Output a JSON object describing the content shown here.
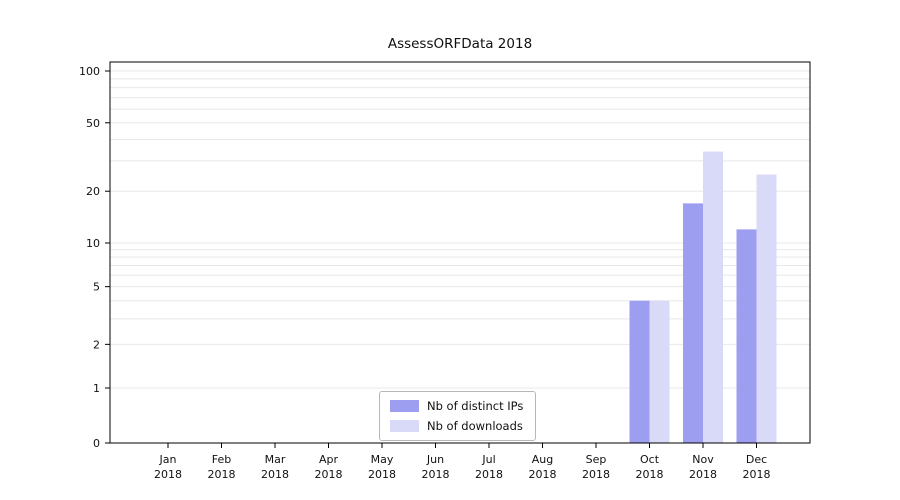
{
  "chart_data": {
    "type": "bar",
    "title": "AssessORFData 2018",
    "categories": [
      {
        "month": "Jan",
        "year": "2018"
      },
      {
        "month": "Feb",
        "year": "2018"
      },
      {
        "month": "Mar",
        "year": "2018"
      },
      {
        "month": "Apr",
        "year": "2018"
      },
      {
        "month": "May",
        "year": "2018"
      },
      {
        "month": "Jun",
        "year": "2018"
      },
      {
        "month": "Jul",
        "year": "2018"
      },
      {
        "month": "Aug",
        "year": "2018"
      },
      {
        "month": "Sep",
        "year": "2018"
      },
      {
        "month": "Oct",
        "year": "2018"
      },
      {
        "month": "Nov",
        "year": "2018"
      },
      {
        "month": "Dec",
        "year": "2018"
      }
    ],
    "series": [
      {
        "name": "Nb of distinct IPs",
        "color": "#9e9ef0",
        "values": [
          0,
          0,
          0,
          0,
          0,
          0,
          0,
          0,
          0,
          4,
          17,
          12
        ]
      },
      {
        "name": "Nb of downloads",
        "color": "#d9d9f8",
        "values": [
          0,
          0,
          0,
          0,
          0,
          0,
          0,
          0,
          0,
          4,
          34,
          25
        ]
      }
    ],
    "yscale": "symlog",
    "yticks": [
      0,
      1,
      2,
      5,
      10,
      20,
      50,
      100
    ],
    "ylim": [
      0,
      110
    ],
    "xlabel": "",
    "ylabel": "",
    "grid": "horizontal-log-minor",
    "gridline_values": [
      1,
      2,
      3,
      4,
      5,
      6,
      7,
      8,
      9,
      10,
      20,
      30,
      40,
      50,
      60,
      70,
      80,
      90,
      100
    ],
    "legend_position": "bottom-center-inside",
    "colors": {
      "grid": "#e8e8e8",
      "axis": "#000000",
      "text": "#111111",
      "background": "#ffffff"
    }
  }
}
